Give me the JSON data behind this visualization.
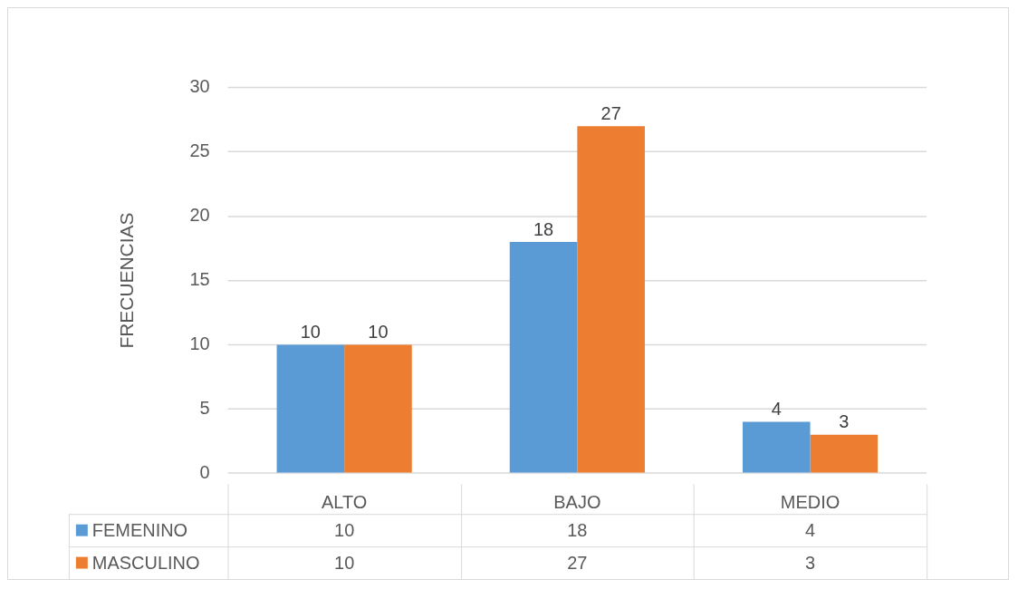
{
  "chart_data": {
    "type": "bar",
    "ylabel": "FRECUENCIAS",
    "categories": [
      "ALTO",
      "BAJO",
      "MEDIO"
    ],
    "series": [
      {
        "name": "FEMENINO",
        "color": "#5b9bd5",
        "values": [
          10,
          18,
          4
        ]
      },
      {
        "name": "MASCULINO",
        "color": "#ed7d31",
        "values": [
          10,
          27,
          3
        ]
      }
    ],
    "annotations": [
      "10",
      "18",
      "4",
      "10",
      "27",
      "3"
    ],
    "ylim": [
      0,
      30
    ],
    "yticks": [
      0,
      5,
      10,
      15,
      20,
      25,
      30
    ],
    "grid": "y",
    "legend": "bottom",
    "data_labels": true
  }
}
